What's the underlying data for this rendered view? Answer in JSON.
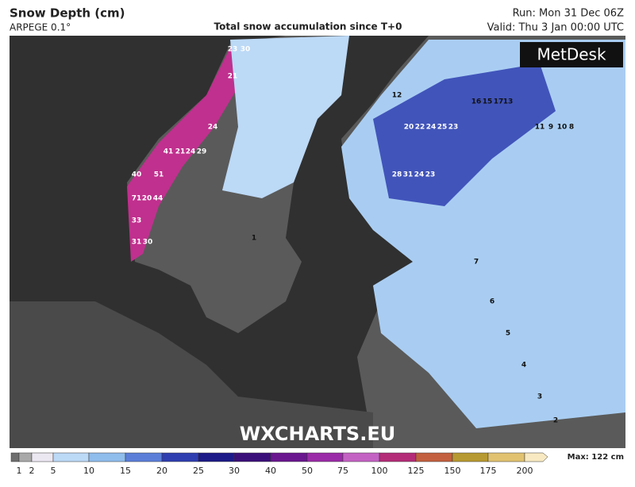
{
  "header": {
    "title": "Snow Depth (cm)",
    "model": "ARPEGE 0.1°",
    "subtitle": "Total snow accumulation since T+0",
    "run": "Run: Mon 31 Dec 06Z",
    "valid": "Valid: Thu 3 Jan 00:00 UTC"
  },
  "logo": "MetDesk",
  "watermark": "WXCHARTS.EU",
  "legend": {
    "ticks": [
      1,
      2,
      5,
      10,
      15,
      20,
      25,
      30,
      40,
      50,
      75,
      100,
      125,
      150,
      175,
      200
    ],
    "colors": [
      "#6e6e6e",
      "#a9a9a9",
      "#ece8f2",
      "#bcd9f6",
      "#8fbdec",
      "#5b7fd9",
      "#2f3eb0",
      "#1c1a88",
      "#3b0f7a",
      "#6a168f",
      "#9b2ba8",
      "#c462c4",
      "#b42c78",
      "#c3603f",
      "#b79a31",
      "#e1c270",
      "#f8e9c2"
    ],
    "max": "Max: 122 cm"
  },
  "map_labels": [
    23,
    30,
    21,
    24,
    41,
    21,
    24,
    29,
    40,
    51,
    71,
    20,
    44,
    33,
    31,
    30,
    12,
    20,
    22,
    24,
    25,
    23,
    28,
    31,
    24,
    23,
    16,
    15,
    17,
    13,
    11,
    9,
    10,
    8,
    7,
    6,
    5,
    4,
    3,
    2,
    1
  ]
}
